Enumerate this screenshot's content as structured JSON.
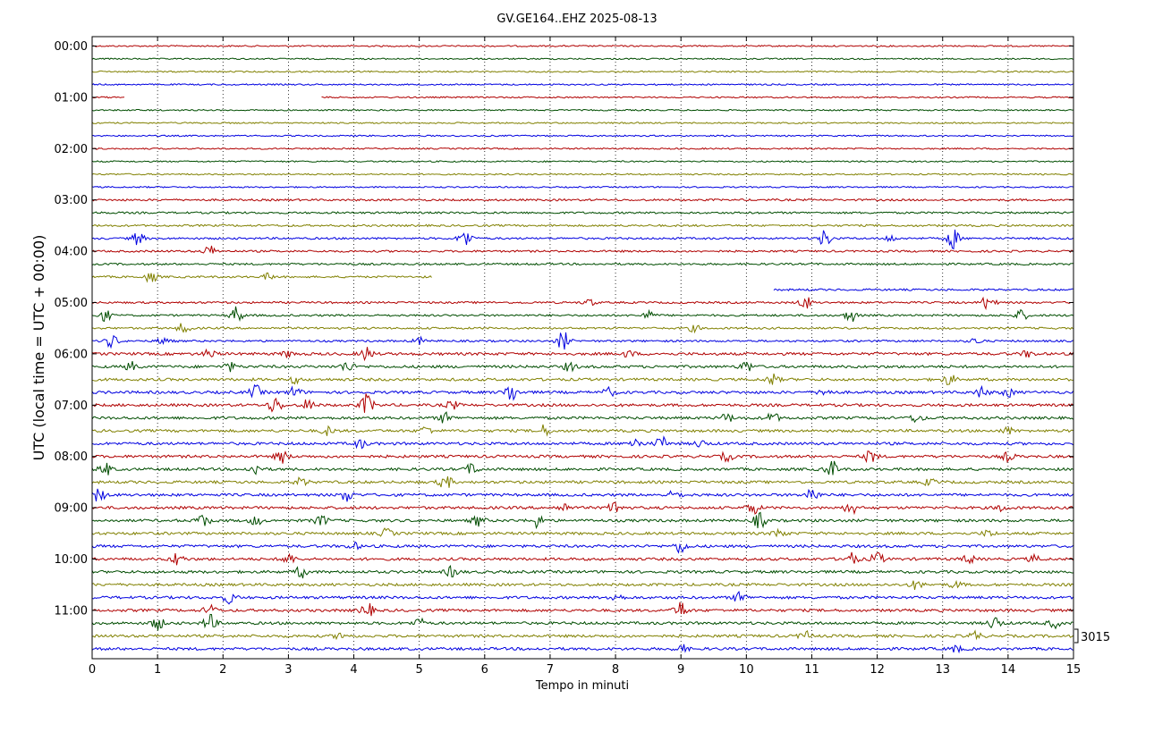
{
  "chart_data": {
    "type": "line",
    "title": "GV.GE164..EHZ 2025-08-13",
    "xlabel": "Tempo in minuti",
    "ylabel": "UTC (local time = UTC + 00:00)",
    "xlim": [
      0,
      15
    ],
    "x_ticks": [
      "0",
      "1",
      "2",
      "3",
      "4",
      "5",
      "6",
      "7",
      "8",
      "9",
      "10",
      "11",
      "12",
      "13",
      "14",
      "15"
    ],
    "y_tick_labels": [
      "00:00",
      "01:00",
      "02:00",
      "03:00",
      "04:00",
      "05:00",
      "06:00",
      "07:00",
      "08:00",
      "09:00",
      "10:00",
      "11:00"
    ],
    "traces_per_hour": 4,
    "trace_count": 48,
    "trace_colors": [
      "#b00000",
      "#004d00",
      "#808000",
      "#0000e0"
    ],
    "scale_label": "3015",
    "grid": "vertical dotted at each minute",
    "gaps": [
      {
        "trace": 4,
        "from_min": 0.5,
        "to_min": 3.5
      },
      {
        "trace": 18,
        "from_min": 5.2,
        "to_min": 15
      },
      {
        "trace": 19,
        "from_min": 0,
        "to_min": 10.4
      }
    ],
    "events": [
      {
        "trace": 15,
        "min": 0.7,
        "amp": 0.6
      },
      {
        "trace": 15,
        "min": 5.7,
        "amp": 0.9
      },
      {
        "trace": 15,
        "min": 11.2,
        "amp": 0.8
      },
      {
        "trace": 15,
        "min": 12.2,
        "amp": 0.3
      },
      {
        "trace": 15,
        "min": 13.15,
        "amp": 1.0
      },
      {
        "trace": 16,
        "min": 1.8,
        "amp": 0.5
      },
      {
        "trace": 18,
        "min": 0.9,
        "amp": 0.5
      },
      {
        "trace": 18,
        "min": 2.7,
        "amp": 0.3
      },
      {
        "trace": 20,
        "min": 7.6,
        "amp": 0.3
      },
      {
        "trace": 20,
        "min": 10.9,
        "amp": 0.6
      },
      {
        "trace": 20,
        "min": 13.7,
        "amp": 0.8
      },
      {
        "trace": 21,
        "min": 0.2,
        "amp": 0.5
      },
      {
        "trace": 21,
        "min": 2.2,
        "amp": 0.8
      },
      {
        "trace": 21,
        "min": 8.5,
        "amp": 0.4
      },
      {
        "trace": 21,
        "min": 11.6,
        "amp": 0.6
      },
      {
        "trace": 21,
        "min": 14.2,
        "amp": 0.5
      },
      {
        "trace": 22,
        "min": 1.4,
        "amp": 0.5
      },
      {
        "trace": 22,
        "min": 9.2,
        "amp": 0.3
      },
      {
        "trace": 23,
        "min": 0.3,
        "amp": 0.6
      },
      {
        "trace": 23,
        "min": 1.1,
        "amp": 0.4
      },
      {
        "trace": 23,
        "min": 5.0,
        "amp": 0.3
      },
      {
        "trace": 23,
        "min": 7.2,
        "amp": 0.9
      },
      {
        "trace": 23,
        "min": 13.5,
        "amp": 0.3
      },
      {
        "trace": 24,
        "min": 1.8,
        "amp": 0.4
      },
      {
        "trace": 24,
        "min": 3.0,
        "amp": 0.3
      },
      {
        "trace": 24,
        "min": 4.2,
        "amp": 0.6
      },
      {
        "trace": 24,
        "min": 8.2,
        "amp": 0.3
      },
      {
        "trace": 24,
        "min": 14.3,
        "amp": 0.3
      },
      {
        "trace": 25,
        "min": 0.6,
        "amp": 0.4
      },
      {
        "trace": 25,
        "min": 2.1,
        "amp": 0.4
      },
      {
        "trace": 25,
        "min": 3.9,
        "amp": 0.5
      },
      {
        "trace": 25,
        "min": 7.3,
        "amp": 0.4
      },
      {
        "trace": 25,
        "min": 10.0,
        "amp": 0.5
      },
      {
        "trace": 26,
        "min": 3.1,
        "amp": 0.3
      },
      {
        "trace": 26,
        "min": 10.4,
        "amp": 0.5
      },
      {
        "trace": 26,
        "min": 13.1,
        "amp": 0.5
      },
      {
        "trace": 27,
        "min": 2.5,
        "amp": 0.6
      },
      {
        "trace": 27,
        "min": 3.1,
        "amp": 0.5
      },
      {
        "trace": 27,
        "min": 6.4,
        "amp": 0.9
      },
      {
        "trace": 27,
        "min": 7.9,
        "amp": 0.4
      },
      {
        "trace": 27,
        "min": 11.2,
        "amp": 0.4
      },
      {
        "trace": 27,
        "min": 13.6,
        "amp": 0.5
      },
      {
        "trace": 27,
        "min": 14.0,
        "amp": 0.4
      },
      {
        "trace": 28,
        "min": 2.8,
        "amp": 0.8
      },
      {
        "trace": 28,
        "min": 3.3,
        "amp": 0.5
      },
      {
        "trace": 28,
        "min": 4.2,
        "amp": 1.0
      },
      {
        "trace": 28,
        "min": 5.5,
        "amp": 0.4
      },
      {
        "trace": 29,
        "min": 5.4,
        "amp": 0.5
      },
      {
        "trace": 29,
        "min": 9.7,
        "amp": 0.4
      },
      {
        "trace": 29,
        "min": 10.4,
        "amp": 0.5
      },
      {
        "trace": 29,
        "min": 12.6,
        "amp": 0.4
      },
      {
        "trace": 30,
        "min": 3.6,
        "amp": 0.4
      },
      {
        "trace": 30,
        "min": 5.1,
        "amp": 0.4
      },
      {
        "trace": 30,
        "min": 6.9,
        "amp": 0.5
      },
      {
        "trace": 30,
        "min": 14.0,
        "amp": 0.3
      },
      {
        "trace": 31,
        "min": 4.1,
        "amp": 0.4
      },
      {
        "trace": 31,
        "min": 8.3,
        "amp": 0.5
      },
      {
        "trace": 31,
        "min": 8.7,
        "amp": 0.6
      },
      {
        "trace": 31,
        "min": 9.3,
        "amp": 0.3
      },
      {
        "trace": 32,
        "min": 2.9,
        "amp": 0.6
      },
      {
        "trace": 32,
        "min": 9.7,
        "amp": 0.4
      },
      {
        "trace": 32,
        "min": 11.9,
        "amp": 0.6
      },
      {
        "trace": 32,
        "min": 14.0,
        "amp": 0.4
      },
      {
        "trace": 33,
        "min": 0.2,
        "amp": 0.6
      },
      {
        "trace": 33,
        "min": 2.5,
        "amp": 0.5
      },
      {
        "trace": 33,
        "min": 5.8,
        "amp": 0.5
      },
      {
        "trace": 33,
        "min": 11.3,
        "amp": 0.8
      },
      {
        "trace": 34,
        "min": 3.2,
        "amp": 0.4
      },
      {
        "trace": 34,
        "min": 5.4,
        "amp": 0.7
      },
      {
        "trace": 34,
        "min": 12.8,
        "amp": 0.3
      },
      {
        "trace": 35,
        "min": 0.1,
        "amp": 0.6
      },
      {
        "trace": 35,
        "min": 3.9,
        "amp": 0.6
      },
      {
        "trace": 35,
        "min": 8.9,
        "amp": 0.4
      },
      {
        "trace": 35,
        "min": 11.0,
        "amp": 0.7
      },
      {
        "trace": 36,
        "min": 7.2,
        "amp": 0.4
      },
      {
        "trace": 36,
        "min": 8.0,
        "amp": 0.7
      },
      {
        "trace": 36,
        "min": 10.1,
        "amp": 0.6
      },
      {
        "trace": 36,
        "min": 11.6,
        "amp": 0.6
      },
      {
        "trace": 36,
        "min": 13.9,
        "amp": 0.3
      },
      {
        "trace": 37,
        "min": 1.7,
        "amp": 0.6
      },
      {
        "trace": 37,
        "min": 2.5,
        "amp": 0.4
      },
      {
        "trace": 37,
        "min": 3.5,
        "amp": 0.5
      },
      {
        "trace": 37,
        "min": 5.9,
        "amp": 0.5
      },
      {
        "trace": 37,
        "min": 6.8,
        "amp": 0.6
      },
      {
        "trace": 37,
        "min": 10.2,
        "amp": 0.7
      },
      {
        "trace": 38,
        "min": 4.5,
        "amp": 0.4
      },
      {
        "trace": 38,
        "min": 10.5,
        "amp": 0.4
      },
      {
        "trace": 38,
        "min": 13.7,
        "amp": 0.3
      },
      {
        "trace": 39,
        "min": 9.0,
        "amp": 0.6
      },
      {
        "trace": 39,
        "min": 4.0,
        "amp": 0.3
      },
      {
        "trace": 40,
        "min": 1.3,
        "amp": 0.6
      },
      {
        "trace": 40,
        "min": 3.0,
        "amp": 0.5
      },
      {
        "trace": 40,
        "min": 11.6,
        "amp": 0.6
      },
      {
        "trace": 40,
        "min": 12.0,
        "amp": 0.6
      },
      {
        "trace": 40,
        "min": 13.4,
        "amp": 0.4
      },
      {
        "trace": 40,
        "min": 14.4,
        "amp": 0.3
      },
      {
        "trace": 41,
        "min": 3.2,
        "amp": 0.5
      },
      {
        "trace": 41,
        "min": 5.5,
        "amp": 0.5
      },
      {
        "trace": 42,
        "min": 12.6,
        "amp": 0.4
      },
      {
        "trace": 42,
        "min": 13.2,
        "amp": 0.3
      },
      {
        "trace": 43,
        "min": 2.1,
        "amp": 0.5
      },
      {
        "trace": 43,
        "min": 8.0,
        "amp": 0.4
      },
      {
        "trace": 43,
        "min": 9.9,
        "amp": 0.5
      },
      {
        "trace": 44,
        "min": 1.8,
        "amp": 0.5
      },
      {
        "trace": 44,
        "min": 4.2,
        "amp": 0.7
      },
      {
        "trace": 44,
        "min": 9.0,
        "amp": 0.8
      },
      {
        "trace": 45,
        "min": 1.0,
        "amp": 0.6
      },
      {
        "trace": 45,
        "min": 1.8,
        "amp": 0.8
      },
      {
        "trace": 45,
        "min": 5.0,
        "amp": 0.4
      },
      {
        "trace": 45,
        "min": 13.8,
        "amp": 0.6
      },
      {
        "trace": 45,
        "min": 14.7,
        "amp": 0.4
      },
      {
        "trace": 46,
        "min": 3.8,
        "amp": 0.3
      },
      {
        "trace": 46,
        "min": 10.9,
        "amp": 0.4
      },
      {
        "trace": 46,
        "min": 13.5,
        "amp": 0.4
      },
      {
        "trace": 47,
        "min": 9.0,
        "amp": 0.4
      },
      {
        "trace": 47,
        "min": 13.2,
        "amp": 0.3
      }
    ]
  }
}
